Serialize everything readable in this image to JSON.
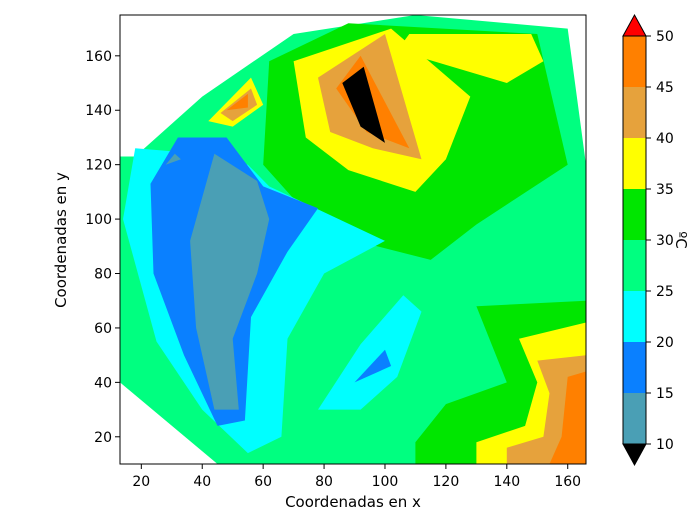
{
  "chart_data": {
    "type": "contourf",
    "xlabel": "Coordenadas en x",
    "ylabel": "Coordenadas en y",
    "xlim": [
      13,
      166
    ],
    "ylim": [
      10,
      175
    ],
    "x_ticks": [
      20,
      40,
      60,
      80,
      100,
      120,
      140,
      160
    ],
    "y_ticks": [
      20,
      40,
      60,
      80,
      100,
      120,
      140,
      160
    ],
    "colorbar": {
      "label": "ºC",
      "levels": [
        10,
        15,
        20,
        25,
        30,
        35,
        40,
        45,
        50
      ],
      "tick_labels": [
        "10",
        "15",
        "20",
        "25",
        "30",
        "35",
        "40",
        "45",
        "50"
      ],
      "colors": [
        "#4a9fb5",
        "#0a80ff",
        "#00ffff",
        "#00ff80",
        "#00e600",
        "#ffff00",
        "#e6a23c",
        "#ff8000"
      ],
      "under_color": "#000000",
      "over_color": "#ff0000"
    },
    "regions": [
      {
        "level": 25,
        "poly": [
          [
            18,
            123
          ],
          [
            40,
            145
          ],
          [
            70,
            168
          ],
          [
            110,
            175
          ],
          [
            160,
            170
          ],
          [
            166,
            120
          ],
          [
            166,
            25
          ],
          [
            110,
            10
          ],
          [
            45,
            10
          ],
          [
            13,
            40
          ],
          [
            13,
            123
          ]
        ]
      },
      {
        "level": 30,
        "poly": [
          [
            88,
            172
          ],
          [
            150,
            168
          ],
          [
            160,
            120
          ],
          [
            130,
            98
          ],
          [
            115,
            85
          ],
          [
            80,
            95
          ],
          [
            60,
            120
          ],
          [
            62,
            158
          ]
        ]
      },
      {
        "level": 35,
        "poly": [
          [
            108,
            168
          ],
          [
            148,
            168
          ],
          [
            152,
            158
          ],
          [
            140,
            150
          ],
          [
            104,
            162
          ]
        ]
      },
      {
        "level": 35,
        "poly": [
          [
            70,
            158
          ],
          [
            102,
            170
          ],
          [
            128,
            145
          ],
          [
            120,
            122
          ],
          [
            110,
            110
          ],
          [
            88,
            118
          ],
          [
            74,
            130
          ]
        ]
      },
      {
        "level": 40,
        "poly": [
          [
            78,
            152
          ],
          [
            100,
            168
          ],
          [
            112,
            122
          ],
          [
            96,
            126
          ],
          [
            82,
            132
          ]
        ]
      },
      {
        "level": 45,
        "poly": [
          [
            84,
            148
          ],
          [
            92,
            160
          ],
          [
            108,
            126
          ],
          [
            94,
            132
          ]
        ]
      },
      {
        "level": 50,
        "poly": [
          [
            86,
            150
          ],
          [
            93,
            156
          ],
          [
            100,
            128
          ],
          [
            92,
            134
          ]
        ]
      },
      {
        "level": 35,
        "poly": [
          [
            42,
            136
          ],
          [
            56,
            152
          ],
          [
            60,
            142
          ],
          [
            50,
            134
          ]
        ]
      },
      {
        "level": 40,
        "poly": [
          [
            46,
            139
          ],
          [
            56,
            148
          ],
          [
            58,
            142
          ],
          [
            50,
            136
          ]
        ]
      },
      {
        "level": 45,
        "poly": [
          [
            48,
            140
          ],
          [
            55,
            146
          ],
          [
            55,
            141
          ]
        ]
      },
      {
        "level": 30,
        "poly": [
          [
            130,
            68
          ],
          [
            166,
            70
          ],
          [
            166,
            10
          ],
          [
            110,
            10
          ],
          [
            110,
            18
          ],
          [
            120,
            32
          ],
          [
            140,
            40
          ]
        ]
      },
      {
        "level": 35,
        "poly": [
          [
            144,
            56
          ],
          [
            166,
            62
          ],
          [
            166,
            10
          ],
          [
            130,
            10
          ],
          [
            130,
            18
          ],
          [
            146,
            24
          ],
          [
            150,
            40
          ]
        ]
      },
      {
        "level": 40,
        "poly": [
          [
            150,
            48
          ],
          [
            166,
            50
          ],
          [
            166,
            10
          ],
          [
            140,
            10
          ],
          [
            140,
            16
          ],
          [
            152,
            20
          ],
          [
            154,
            36
          ]
        ]
      },
      {
        "level": 45,
        "poly": [
          [
            160,
            42
          ],
          [
            166,
            44
          ],
          [
            166,
            10
          ],
          [
            154,
            10
          ],
          [
            158,
            20
          ]
        ]
      },
      {
        "level": 20,
        "poly": [
          [
            18,
            126
          ],
          [
            40,
            124
          ],
          [
            55,
            120
          ],
          [
            62,
            112
          ],
          [
            100,
            92
          ],
          [
            80,
            80
          ],
          [
            68,
            56
          ],
          [
            66,
            20
          ],
          [
            55,
            14
          ],
          [
            40,
            30
          ],
          [
            25,
            55
          ],
          [
            14,
            100
          ]
        ]
      },
      {
        "level": 15,
        "poly": [
          [
            23,
            113
          ],
          [
            32,
            130
          ],
          [
            48,
            130
          ],
          [
            60,
            112
          ],
          [
            78,
            104
          ],
          [
            68,
            88
          ],
          [
            56,
            64
          ],
          [
            54,
            26
          ],
          [
            45,
            24
          ],
          [
            34,
            50
          ],
          [
            24,
            80
          ]
        ]
      },
      {
        "level": 10,
        "poly": [
          [
            36,
            92
          ],
          [
            44,
            124
          ],
          [
            58,
            114
          ],
          [
            62,
            100
          ],
          [
            58,
            80
          ],
          [
            50,
            56
          ],
          [
            52,
            30
          ],
          [
            44,
            30
          ],
          [
            38,
            60
          ]
        ]
      },
      {
        "level": 15,
        "poly": [
          [
            26,
            118
          ],
          [
            30,
            126
          ],
          [
            34,
            126
          ],
          [
            34,
            120
          ]
        ]
      },
      {
        "level": 10,
        "poly": [
          [
            28,
            120
          ],
          [
            31,
            124
          ],
          [
            33,
            122
          ]
        ]
      },
      {
        "level": 20,
        "poly": [
          [
            78,
            30
          ],
          [
            92,
            54
          ],
          [
            106,
            72
          ],
          [
            112,
            66
          ],
          [
            104,
            42
          ],
          [
            92,
            30
          ]
        ]
      },
      {
        "level": 15,
        "poly": [
          [
            90,
            40
          ],
          [
            100,
            52
          ],
          [
            102,
            46
          ]
        ]
      }
    ]
  }
}
